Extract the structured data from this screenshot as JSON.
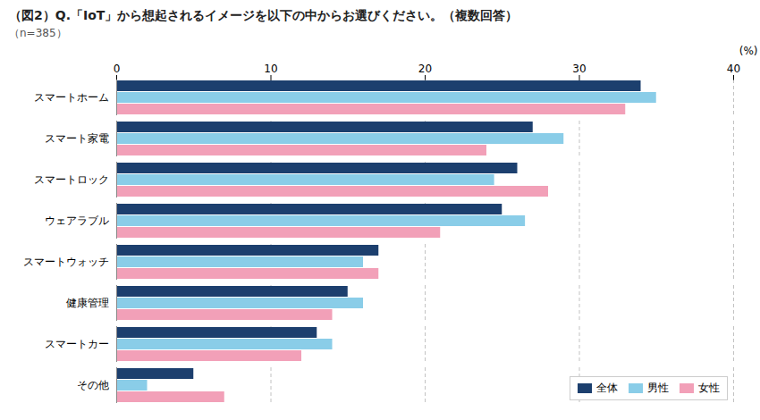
{
  "chart_data": {
    "type": "bar",
    "orientation": "horizontal",
    "title": "（図2）Q.「IoT」から想起されるイメージを以下の中からお選びください。（複数回答）",
    "annotations": [
      "（n=385）"
    ],
    "xlabel": "(%)",
    "categories": [
      "スマートホーム",
      "スマート家電",
      "スマートロック",
      "ウェアラブル",
      "スマートウォッチ",
      "健康管理",
      "スマートカー",
      "その他"
    ],
    "series": [
      {
        "name": "全体",
        "color": "#1c3f6e",
        "values": [
          34.0,
          27.0,
          26.0,
          25.0,
          17.0,
          15.0,
          13.0,
          5.0
        ]
      },
      {
        "name": "男性",
        "color": "#8acde8",
        "values": [
          35.0,
          29.0,
          24.5,
          26.5,
          16.0,
          16.0,
          14.0,
          2.0
        ]
      },
      {
        "name": "女性",
        "color": "#f2a0b8",
        "values": [
          33.0,
          24.0,
          28.0,
          21.0,
          17.0,
          14.0,
          12.0,
          7.0
        ]
      }
    ],
    "xlim": [
      0,
      40
    ],
    "xticks": [
      0,
      10,
      20,
      30,
      40
    ],
    "grid": true,
    "legend": "lower right"
  }
}
